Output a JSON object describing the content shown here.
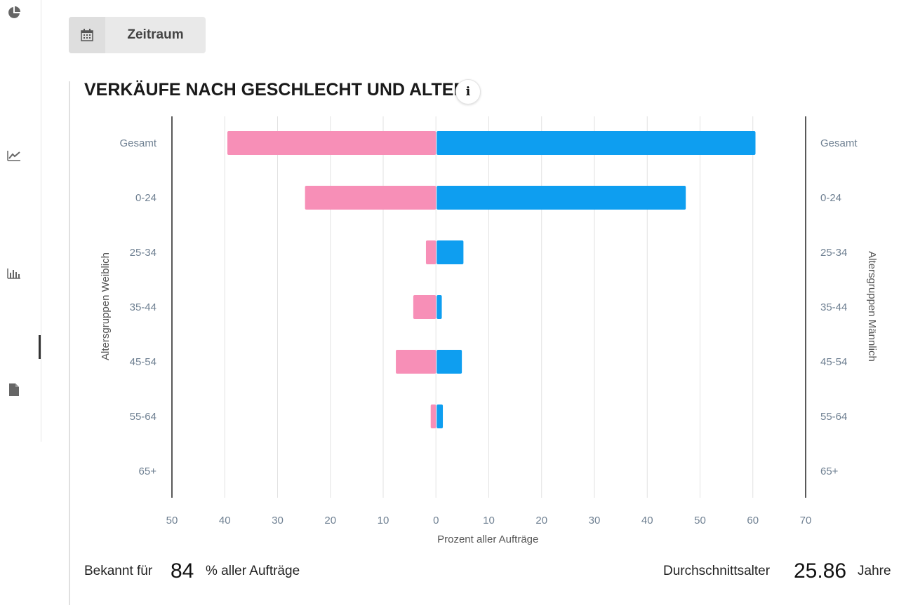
{
  "toolbar": {
    "period_label": "Zeitraum"
  },
  "card": {
    "title": "VERKÄUFE NACH GESCHLECHT UND ALTER"
  },
  "nav": {
    "icons": [
      "pie-chart-icon",
      "line-chart-icon",
      "bar-chart-icon",
      "document-icon"
    ]
  },
  "colors": {
    "female": "#f78fb7",
    "male": "#0e9ef0",
    "axis": "#222222",
    "grid": "#e2e2e2",
    "tick": "#6f8092"
  },
  "chart_data": {
    "type": "bar",
    "orientation": "horizontal",
    "categories": [
      "Gesamt",
      "0-24",
      "25-34",
      "35-44",
      "45-54",
      "55-64",
      "65+"
    ],
    "series": [
      {
        "values": [
          39.5,
          24.8,
          1.9,
          4.3,
          7.6,
          1.0,
          0
        ]
      },
      {
        "values": [
          60.5,
          47.3,
          5.2,
          1.1,
          4.9,
          1.3,
          0
        ]
      }
    ],
    "xlim": [
      -50,
      70
    ],
    "xticks": [
      "50",
      "40",
      "30",
      "20",
      "10",
      "0",
      "10",
      "20",
      "30",
      "40",
      "50",
      "60",
      "70"
    ],
    "xlabel": "Prozent aller Aufträge",
    "ylabel_left": "Altersgruppen Weiblich",
    "ylabel_right": "Altersgruppen Männlich",
    "grid": true
  },
  "footer": {
    "known_prefix": "Bekannt für",
    "known_value": "84",
    "known_suffix": "% aller Aufträge",
    "avg_label": "Durchschnittsalter",
    "avg_value": "25.86",
    "avg_unit": "Jahre"
  }
}
